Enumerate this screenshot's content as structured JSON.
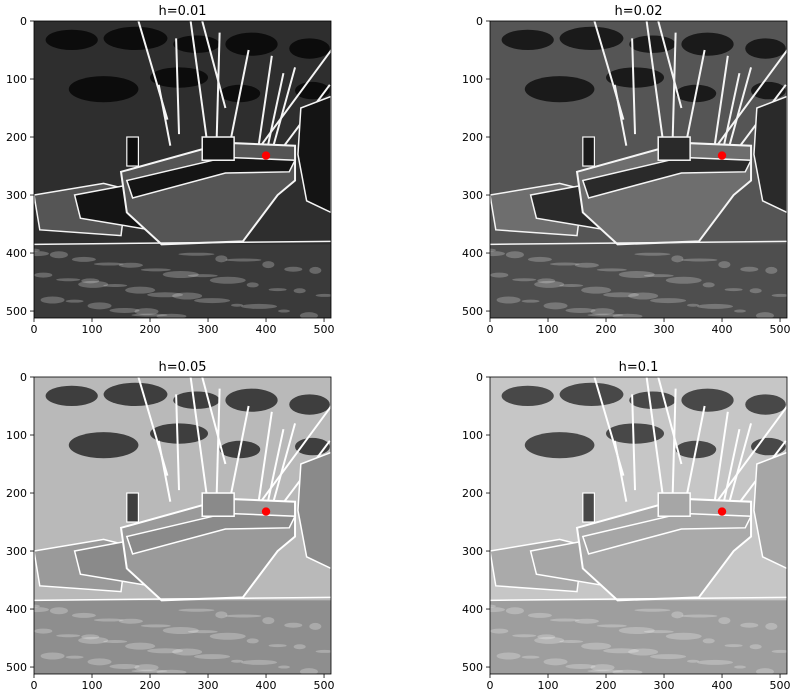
{
  "chart_data": [
    {
      "type": "image",
      "title": "h=0.01",
      "xlim": [
        0,
        512
      ],
      "ylim": [
        512,
        0
      ],
      "xticks": [
        0,
        100,
        200,
        300,
        400,
        500
      ],
      "yticks": [
        0,
        100,
        200,
        300,
        400,
        500
      ],
      "brightness": "dark",
      "marker": {
        "x": 400,
        "y": 232,
        "color": "#ff0000"
      }
    },
    {
      "type": "image",
      "title": "h=0.02",
      "xlim": [
        0,
        512
      ],
      "ylim": [
        512,
        0
      ],
      "xticks": [
        0,
        100,
        200,
        300,
        400,
        500
      ],
      "yticks": [
        0,
        100,
        200,
        300,
        400,
        500
      ],
      "brightness": "dark-medium",
      "marker": {
        "x": 400,
        "y": 232,
        "color": "#ff0000"
      }
    },
    {
      "type": "image",
      "title": "h=0.05",
      "xlim": [
        0,
        512
      ],
      "ylim": [
        512,
        0
      ],
      "xticks": [
        0,
        100,
        200,
        300,
        400,
        500
      ],
      "yticks": [
        0,
        100,
        200,
        300,
        400,
        500
      ],
      "brightness": "medium-light",
      "marker": {
        "x": 400,
        "y": 232,
        "color": "#ff0000"
      }
    },
    {
      "type": "image",
      "title": "h=0.1",
      "xlim": [
        0,
        512
      ],
      "ylim": [
        512,
        0
      ],
      "xticks": [
        0,
        100,
        200,
        300,
        400,
        500
      ],
      "yticks": [
        0,
        100,
        200,
        300,
        400,
        500
      ],
      "brightness": "light",
      "marker": {
        "x": 400,
        "y": 232,
        "color": "#ff0000"
      }
    }
  ],
  "style": {
    "palettes": {
      "dark": {
        "bg": "#141414",
        "sky": "#2e2e2e",
        "cloud": "#0c0c0c",
        "hull": "#555555",
        "water": "#3a3a3a",
        "edge": "#f5f5f5"
      },
      "dark-medium": {
        "bg": "#2a2a2a",
        "sky": "#555555",
        "cloud": "#1a1a1a",
        "hull": "#6e6e6e",
        "water": "#4e4e4e",
        "edge": "#f5f5f5"
      },
      "medium-light": {
        "bg": "#8a8a8a",
        "sky": "#b9b9b9",
        "cloud": "#3e3e3e",
        "hull": "#9a9a9a",
        "water": "#8e8e8e",
        "edge": "#ffffff"
      },
      "light": {
        "bg": "#a6a6a6",
        "sky": "#c6c6c6",
        "cloud": "#484848",
        "hull": "#aaaaaa",
        "water": "#9e9e9e",
        "edge": "#ffffff"
      }
    },
    "marker_color": "#ff0000"
  }
}
